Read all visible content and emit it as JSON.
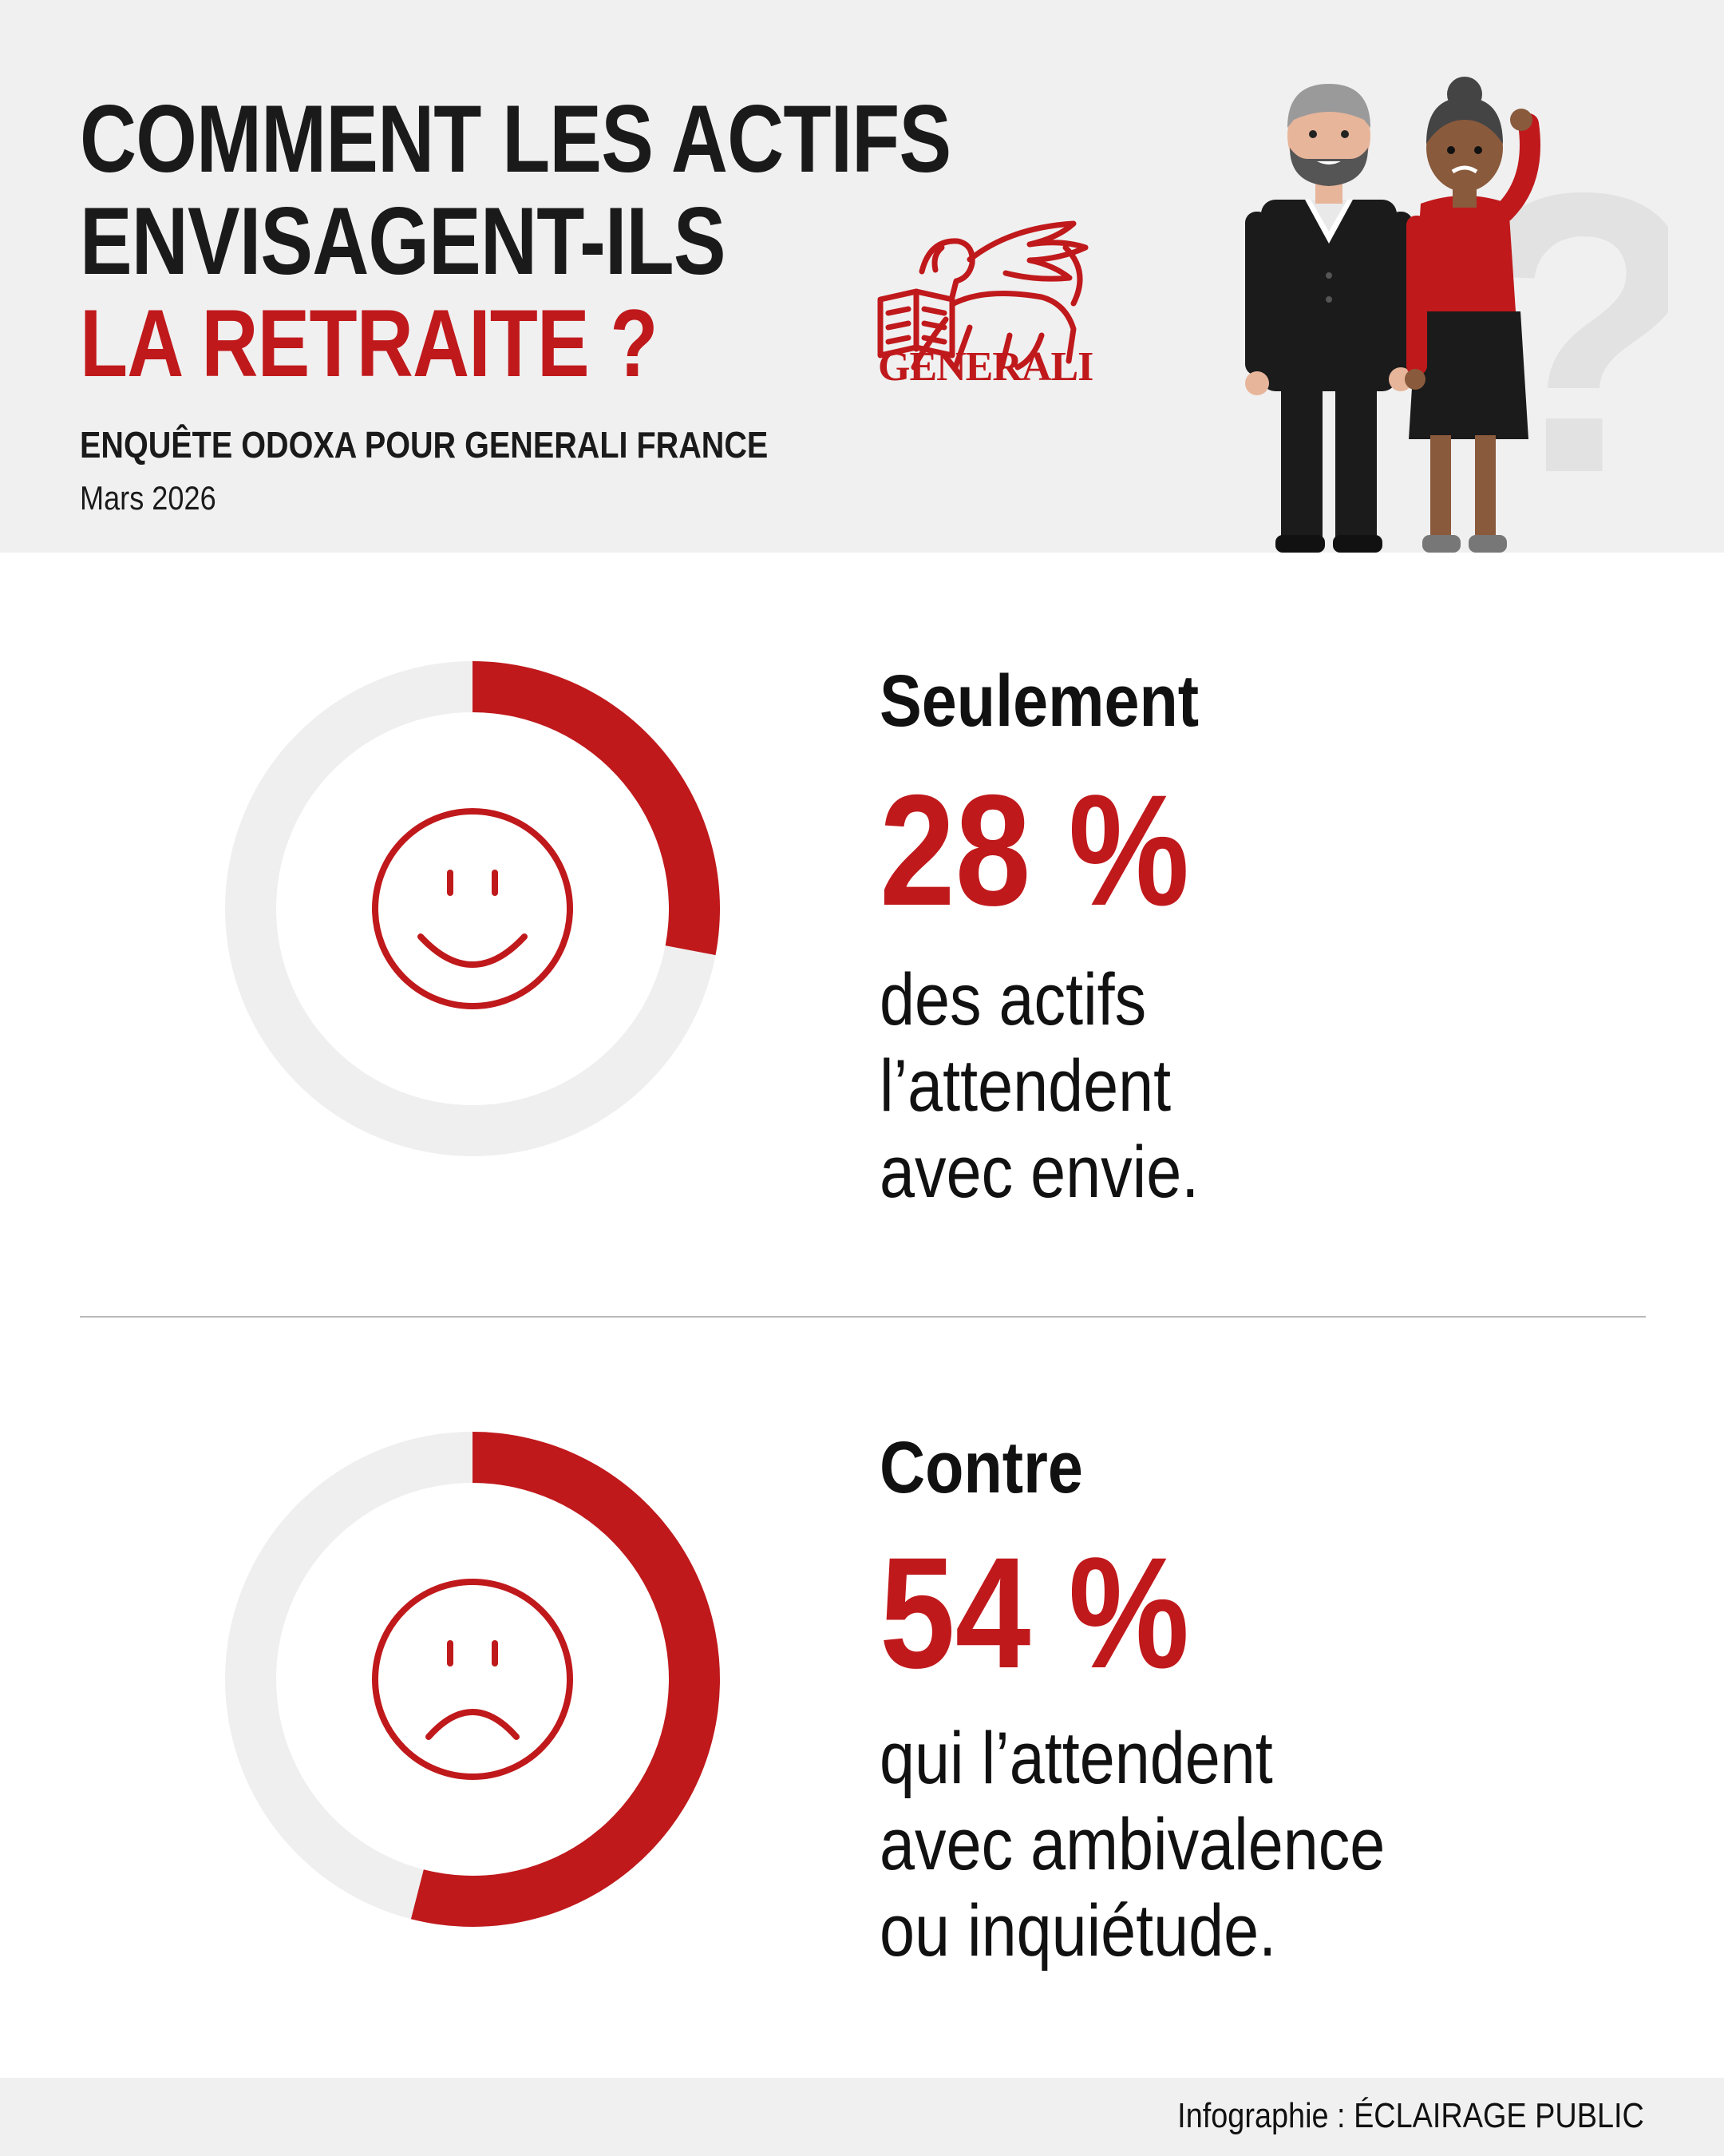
{
  "header": {
    "title_lines": [
      "COMMENT LES ACTIFS",
      "ENVISAGENT-ILS"
    ],
    "title_accent": "LA RETRAITE ?",
    "survey": "ENQUÊTE ODOXA POUR GENERALI FRANCE",
    "date": "Mars 2026",
    "logo_text": "GENERALI",
    "decor_question_mark": "?"
  },
  "stats": [
    {
      "lead": "Seulement",
      "value_label": "28 %",
      "description_lines": [
        "des actifs",
        "l’attendent",
        "avec envie."
      ],
      "icon": "happy-face-icon"
    },
    {
      "lead": "Contre",
      "value_label": "54 %",
      "description_lines": [
        "qui l’attendent",
        "avec ambivalence",
        "ou inquiétude."
      ],
      "icon": "sad-face-icon"
    }
  ],
  "footer": {
    "credit": "Infographie :  ÉCLAIRAGE PUBLIC"
  },
  "colors": {
    "accent": "#c0191c",
    "track": "#efefef",
    "text": "#111111",
    "header_bg": "#f0f0f0"
  },
  "chart_data": [
    {
      "type": "pie",
      "variant": "donut",
      "values": [
        28,
        72
      ],
      "highlight_index": 0,
      "value_label": "28 %",
      "start": "top",
      "direction": "clockwise",
      "colors": [
        "#c0191c",
        "#efefef"
      ]
    },
    {
      "type": "pie",
      "variant": "donut",
      "values": [
        54,
        46
      ],
      "highlight_index": 0,
      "value_label": "54 %",
      "start": "top",
      "direction": "clockwise",
      "colors": [
        "#c0191c",
        "#efefef"
      ]
    }
  ]
}
